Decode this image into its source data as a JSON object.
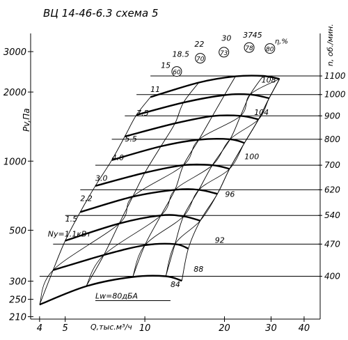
{
  "chart_data": {
    "type": "line",
    "title": "ВЦ 14-46-6.3 схема 5",
    "xlabel": "Q,тыс.м³/ч",
    "ylabel": "Pv,Па",
    "rpm_label": "n, об./мин.",
    "x_scale": "log",
    "y_scale": "log",
    "xlim": [
      3.7,
      46
    ],
    "ylim": [
      205,
      3600
    ],
    "x_ticks": [
      4,
      5,
      10,
      20,
      30,
      40
    ],
    "y_ticks": [
      210,
      250,
      300,
      500,
      1000,
      2000,
      3000
    ],
    "rpm_values": [
      400,
      470,
      540,
      620,
      700,
      800,
      900,
      1000,
      1100
    ],
    "power_labels": [
      {
        "text": "Ny=1.1кВт",
        "q": 4.3,
        "p": 470
      },
      {
        "text": "1.5",
        "q": 5.0,
        "p": 545
      },
      {
        "text": "2.2",
        "q": 5.7,
        "p": 670
      },
      {
        "text": "3.0",
        "q": 6.5,
        "p": 820
      },
      {
        "text": "4.0",
        "q": 7.5,
        "p": 1010
      },
      {
        "text": "5.5",
        "q": 8.4,
        "p": 1220
      },
      {
        "text": "7.5",
        "q": 9.3,
        "p": 1580
      },
      {
        "text": "11",
        "q": 10.5,
        "p": 2000
      },
      {
        "text": "15",
        "q": 11.5,
        "p": 2550
      },
      {
        "text": "18.5",
        "q": 12.7,
        "p": 2850
      },
      {
        "text": "22",
        "q": 15.4,
        "p": 3150
      },
      {
        "text": "30",
        "q": 19.5,
        "p": 3350
      },
      {
        "text": "37",
        "q": 23.5,
        "p": 3450
      },
      {
        "text": "45",
        "q": 25.5,
        "p": 3450
      }
    ],
    "efficiency_labels": [
      {
        "text": "60",
        "q": 13.2,
        "p": 2390
      },
      {
        "text": "70",
        "q": 16.2,
        "p": 2730
      },
      {
        "text": "73",
        "q": 19.9,
        "p": 2900
      },
      {
        "text": "78",
        "q": 24.8,
        "p": 3040
      },
      {
        "text": "80",
        "q": 29.7,
        "p": 3010
      },
      {
        "text": "η,%",
        "q": 31,
        "p": 3250
      }
    ],
    "noise_labels": [
      {
        "text": "Lw=80дБА",
        "q": 6.5,
        "p": 252
      },
      {
        "text": "84",
        "q": 12.5,
        "p": 283
      },
      {
        "text": "88",
        "q": 15.3,
        "p": 330
      },
      {
        "text": "92",
        "q": 18.4,
        "p": 440
      },
      {
        "text": "96",
        "q": 20.1,
        "p": 700
      },
      {
        "text": "100",
        "q": 23.8,
        "p": 1020
      },
      {
        "text": "104",
        "q": 25.9,
        "p": 1590
      },
      {
        "text": "108",
        "q": 27.6,
        "p": 2200
      }
    ],
    "series": [
      {
        "name": "400",
        "points": [
          [
            4.0,
            237
          ],
          [
            6.0,
            285
          ],
          [
            9.0,
            313
          ],
          [
            12.0,
            315
          ],
          [
            13.8,
            301
          ]
        ]
      },
      {
        "name": "470",
        "points": [
          [
            4.5,
            335
          ],
          [
            7.0,
            390
          ],
          [
            10.0,
            430
          ],
          [
            13.0,
            435
          ],
          [
            14.6,
            416
          ]
        ]
      },
      {
        "name": "540",
        "points": [
          [
            5.0,
            450
          ],
          [
            8.0,
            535
          ],
          [
            11.5,
            580
          ],
          [
            14.0,
            575
          ],
          [
            16.2,
            550
          ]
        ]
      },
      {
        "name": "620",
        "points": [
          [
            5.7,
            600
          ],
          [
            9.0,
            700
          ],
          [
            13.0,
            750
          ],
          [
            16.0,
            750
          ],
          [
            18.8,
            720
          ]
        ]
      },
      {
        "name": "700",
        "points": [
          [
            6.5,
            780
          ],
          [
            10.0,
            890
          ],
          [
            14.0,
            960
          ],
          [
            18.0,
            960
          ],
          [
            20.9,
            925
          ]
        ]
      },
      {
        "name": "800",
        "points": [
          [
            7.5,
            1010
          ],
          [
            11.5,
            1160
          ],
          [
            16.0,
            1240
          ],
          [
            21.0,
            1245
          ],
          [
            23.8,
            1200
          ]
        ]
      },
      {
        "name": "900",
        "points": [
          [
            8.4,
            1280
          ],
          [
            13.0,
            1460
          ],
          [
            18.0,
            1570
          ],
          [
            23.0,
            1575
          ],
          [
            26.9,
            1520
          ]
        ]
      },
      {
        "name": "1000",
        "points": [
          [
            9.3,
            1590
          ],
          [
            14.0,
            1800
          ],
          [
            20.0,
            1940
          ],
          [
            25.0,
            1950
          ],
          [
            29.5,
            1880
          ]
        ]
      },
      {
        "name": "1100",
        "points": [
          [
            10.5,
            1900
          ],
          [
            16.0,
            2200
          ],
          [
            22.0,
            2340
          ],
          [
            28.0,
            2350
          ],
          [
            32.3,
            2280
          ]
        ]
      }
    ]
  }
}
